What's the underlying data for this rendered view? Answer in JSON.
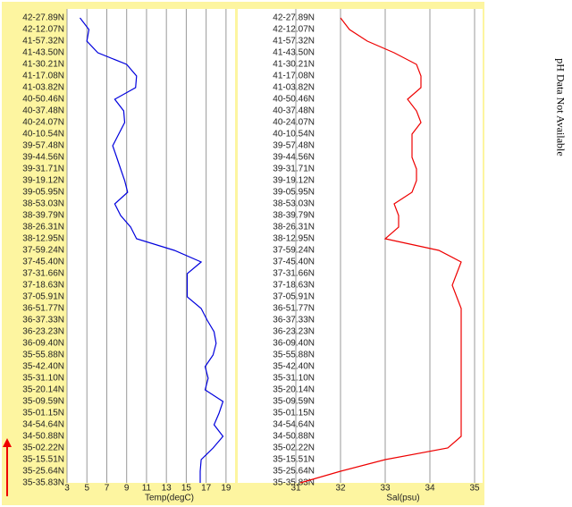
{
  "chart_data": [
    {
      "type": "line",
      "xlabel": "Temp(degC)",
      "color": "#0000dd",
      "categories": [
        "42-27.89N",
        "42-12.07N",
        "41-57.32N",
        "41-43.50N",
        "41-30.21N",
        "41-17.08N",
        "41-03.82N",
        "40-50.46N",
        "40-37.48N",
        "40-24.07N",
        "40-10.54N",
        "39-57.48N",
        "39-44.56N",
        "39-31.71N",
        "39-19.12N",
        "39-05.95N",
        "38-53.03N",
        "38-39.79N",
        "38-26.31N",
        "38-12.95N",
        "37-59.24N",
        "37-45.40N",
        "37-31.66N",
        "37-18.63N",
        "37-05.91N",
        "36-51.77N",
        "36-37.33N",
        "36-23.23N",
        "36-09.40N",
        "35-55.88N",
        "35-42.40N",
        "35-31.10N",
        "35-20.14N",
        "35-09.59N",
        "35-01.15N",
        "34-54.64N",
        "34-50.88N",
        "35-02.22N",
        "35-15.51N",
        "35-25.64N",
        "35-35.83N"
      ],
      "values": [
        4.3,
        5.2,
        5.0,
        6.1,
        9.0,
        10.0,
        9.9,
        7.8,
        8.7,
        8.8,
        8.2,
        7.6,
        8.0,
        8.4,
        8.8,
        9.1,
        7.8,
        8.4,
        9.4,
        10.0,
        13.8,
        16.5,
        15.1,
        15.1,
        15.1,
        16.5,
        17.1,
        17.8,
        18.0,
        17.7,
        16.9,
        17.2,
        16.9,
        18.7,
        18.3,
        17.8,
        18.7,
        17.7,
        16.5,
        16.4,
        16.4
      ],
      "xlim": [
        3,
        20
      ],
      "xticks": [
        3,
        5,
        7,
        9,
        11,
        13,
        15,
        17,
        19
      ],
      "grid": true
    },
    {
      "type": "line",
      "xlabel": "Sal(psu)",
      "color": "#ee0000",
      "categories": [
        "42-27.89N",
        "42-12.07N",
        "41-57.32N",
        "41-43.50N",
        "41-30.21N",
        "41-17.08N",
        "41-03.82N",
        "40-50.46N",
        "40-37.48N",
        "40-24.07N",
        "40-10.54N",
        "39-57.48N",
        "39-44.56N",
        "39-31.71N",
        "39-19.12N",
        "39-05.95N",
        "38-53.03N",
        "38-39.79N",
        "38-26.31N",
        "38-12.95N",
        "37-59.24N",
        "37-45.40N",
        "37-31.66N",
        "37-18.63N",
        "37-05.91N",
        "36-51.77N",
        "36-37.33N",
        "36-23.23N",
        "36-09.40N",
        "35-55.88N",
        "35-42.40N",
        "35-31.10N",
        "35-20.14N",
        "35-09.59N",
        "35-01.15N",
        "34-54.64N",
        "34-50.88N",
        "35-02.22N",
        "35-15.51N",
        "35-25.64N",
        "35-35.83N"
      ],
      "values": [
        32.0,
        32.2,
        32.6,
        33.2,
        33.7,
        33.8,
        33.8,
        33.5,
        33.7,
        33.8,
        33.6,
        33.6,
        33.6,
        33.7,
        33.7,
        33.6,
        33.2,
        33.3,
        33.3,
        33.0,
        34.2,
        34.7,
        34.6,
        34.5,
        34.6,
        34.7,
        34.7,
        34.7,
        34.7,
        34.7,
        34.7,
        34.7,
        34.7,
        34.7,
        34.7,
        34.7,
        34.7,
        34.4,
        33.0,
        32.0,
        31.1
      ],
      "xlim": [
        31,
        35
      ],
      "xticks": [
        31,
        32,
        33,
        34,
        35
      ],
      "grid": true
    }
  ],
  "side_note": "pH Data Not Available"
}
